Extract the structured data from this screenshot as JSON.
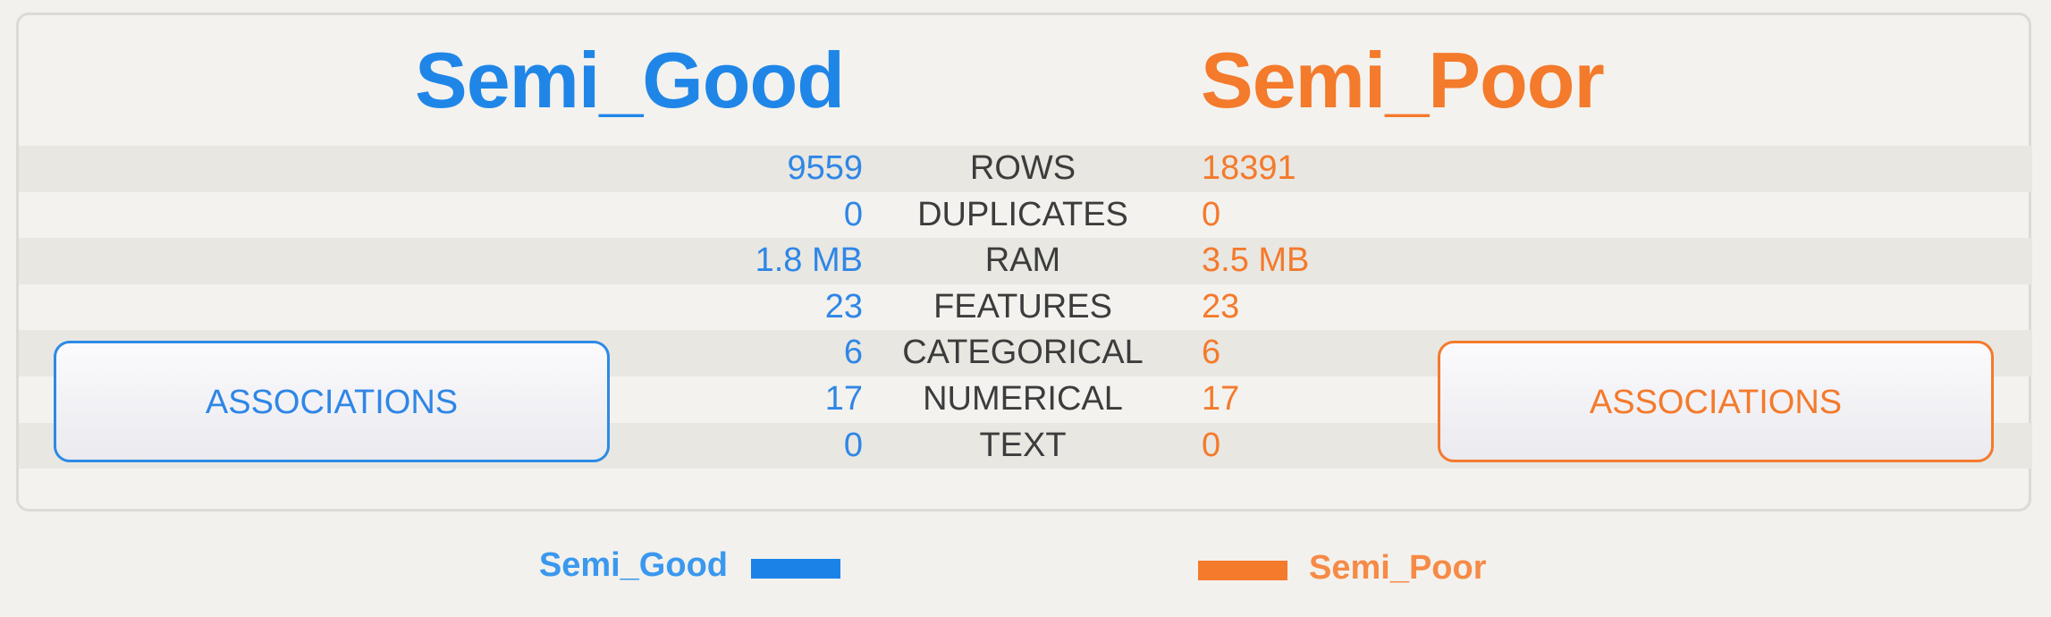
{
  "left": {
    "title": "Semi_Good",
    "color": "#1f86e8",
    "associations_label": "ASSOCIATIONS"
  },
  "right": {
    "title": "Semi_Poor",
    "color": "#f47a2c",
    "associations_label": "ASSOCIATIONS"
  },
  "rows": [
    {
      "label": "ROWS",
      "left": "9559",
      "right": "18391"
    },
    {
      "label": "DUPLICATES",
      "left": "0",
      "right": "0"
    },
    {
      "label": "RAM",
      "left": "1.8 MB",
      "right": "3.5 MB"
    },
    {
      "label": "FEATURES",
      "left": "23",
      "right": "23"
    },
    {
      "label": "CATEGORICAL",
      "left": "6",
      "right": "6"
    },
    {
      "label": "NUMERICAL",
      "left": "17",
      "right": "17"
    },
    {
      "label": "TEXT",
      "left": "0",
      "right": "0"
    }
  ],
  "legend": {
    "left_label": "Semi_Good",
    "right_label": "Semi_Poor"
  }
}
